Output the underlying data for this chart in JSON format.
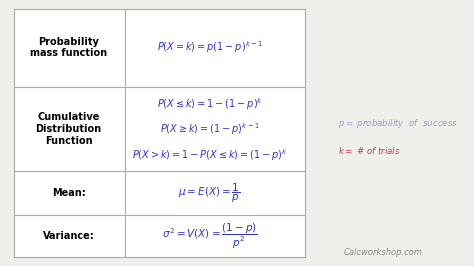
{
  "background_color": "#f0f0eb",
  "table_bg": "#ffffff",
  "border_color": "#aaaaaa",
  "text_color_label": "#000000",
  "text_color_formula": "#3333cc",
  "text_color_note_p": "#9999cc",
  "text_color_note_k": "#cc3366",
  "watermark": "Calcworkshop.com",
  "hlines": [
    0.675,
    0.355,
    0.19
  ],
  "col_div": 0.285
}
